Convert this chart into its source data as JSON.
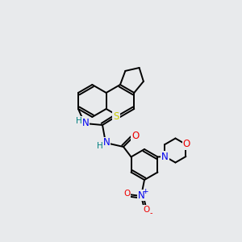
{
  "bg_color": "#e8eaec",
  "bond_color": "#000000",
  "bond_width": 1.4,
  "atom_colors": {
    "N": "#0000ee",
    "O": "#ee0000",
    "S": "#cccc00",
    "C": "#000000",
    "H": "#008080"
  },
  "figsize": [
    3.0,
    3.0
  ],
  "dpi": 100
}
